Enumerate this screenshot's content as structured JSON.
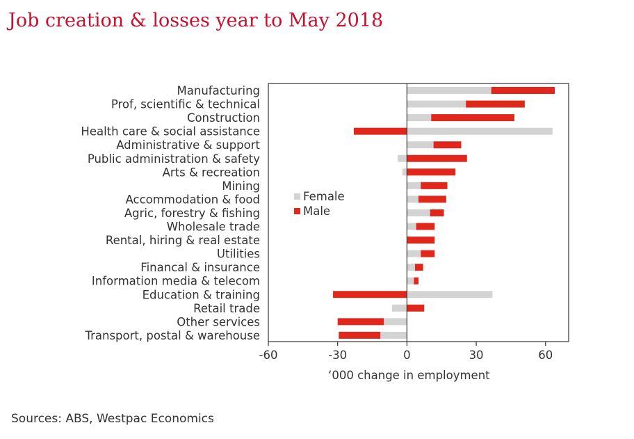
{
  "title": "Job creation & losses year to May 2018",
  "source": "Sources: ABS, Westpac Economics",
  "colors": {
    "female": "#d3d3d3",
    "male": "#e1261c",
    "title": "#c8102e",
    "axis": "#333333"
  },
  "chart_data": {
    "type": "bar",
    "orientation": "horizontal",
    "stacked": true,
    "categories": [
      "Manufacturing",
      "Prof, scientific & technical",
      "Construction",
      "Health care & social assistance",
      "Administrative & support",
      "Public administration & safety",
      "Arts & recreation",
      "Mining",
      "Accommodation & food",
      "Agric, forestry & fishing",
      "Wholesale trade",
      "Rental, hiring & real estate",
      "Utilities",
      "Financal & insurance",
      "Information media & telecom",
      "Education & training",
      "Retail trade",
      "Other services",
      "Transport, postal & warehouse"
    ],
    "series": [
      {
        "name": "Female",
        "values": [
          36.5,
          25.5,
          10.5,
          63,
          11.5,
          -4,
          -2,
          6,
          5,
          10,
          4,
          0,
          6,
          3.5,
          3,
          37,
          -6.5,
          -10,
          -11.5
        ]
      },
      {
        "name": "Male",
        "values": [
          27.5,
          25.5,
          36,
          -23,
          12,
          26,
          21,
          11.5,
          12,
          6,
          8,
          12,
          6,
          3.5,
          2,
          -32,
          7.5,
          -20,
          -18
        ]
      }
    ],
    "xlabel": "‘000 change in employment",
    "xlim": [
      -60,
      70
    ],
    "xticks": [
      -60,
      -30,
      0,
      30,
      60
    ],
    "xtick_labels": [
      "-60",
      "-30",
      "0",
      "30",
      "60"
    ],
    "legend": {
      "position": "inside-left",
      "entries": [
        "Female",
        "Male"
      ]
    },
    "grid": false
  }
}
